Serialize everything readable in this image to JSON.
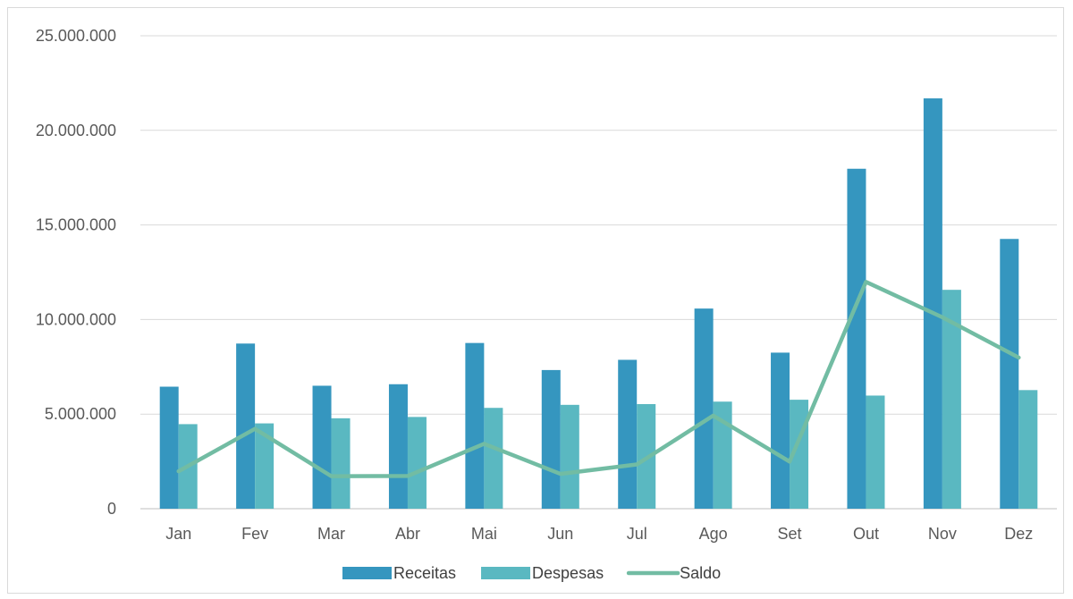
{
  "chart_data": {
    "type": "bar",
    "categories": [
      "Jan",
      "Fev",
      "Mar",
      "Abr",
      "Mai",
      "Jun",
      "Jul",
      "Ago",
      "Set",
      "Out",
      "Nov",
      "Dez"
    ],
    "series": [
      {
        "name": "Receitas",
        "kind": "bar",
        "color": "#3596bf",
        "values": [
          6450000,
          8730000,
          6500000,
          6580000,
          8760000,
          7330000,
          7870000,
          10580000,
          8250000,
          17970000,
          21690000,
          14260000
        ]
      },
      {
        "name": "Despesas",
        "kind": "bar",
        "color": "#5ab8c1",
        "values": [
          4470000,
          4510000,
          4780000,
          4850000,
          5330000,
          5490000,
          5530000,
          5660000,
          5760000,
          5980000,
          11570000,
          6270000
        ]
      },
      {
        "name": "Saldo",
        "kind": "line",
        "color": "#72bca3",
        "values": [
          1980000,
          4220000,
          1720000,
          1730000,
          3430000,
          1840000,
          2340000,
          4920000,
          2490000,
          11990000,
          10120000,
          7990000
        ]
      }
    ],
    "ylim": [
      0,
      25000000
    ],
    "yticks": [
      0,
      5000000,
      10000000,
      15000000,
      20000000,
      25000000
    ],
    "ytick_labels": [
      "0",
      "5.000.000",
      "10.000.000",
      "15.000.000",
      "20.000.000",
      "25.000.000"
    ],
    "grid": true,
    "legend_position": "bottom",
    "title": "",
    "xlabel": "",
    "ylabel": ""
  }
}
